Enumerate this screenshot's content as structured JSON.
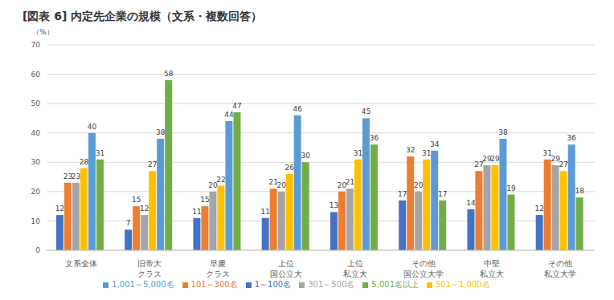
{
  "chart_data": {
    "type": "bar",
    "title": "[図表 6] 内定先企業の規模（文系・複数回答）",
    "y_label": "（%）",
    "categories": [
      "文系全体",
      "旧帝大\nクラス",
      "早慶\nクラス",
      "上位\n国公立大",
      "上位\n私立大",
      "その他\n国公立大学",
      "中堅\n私立大",
      "その他\n私立大学"
    ],
    "series": [
      {
        "name": "1～100名",
        "color": "#4472c4",
        "values": [
          12,
          7,
          11,
          11,
          13,
          17,
          14,
          12
        ]
      },
      {
        "name": "101～300名",
        "color": "#ed7d31",
        "values": [
          23,
          15,
          15,
          21,
          20,
          32,
          27,
          31
        ]
      },
      {
        "name": "301～500名",
        "color": "#a5a5a5",
        "values": [
          23,
          12,
          20,
          20,
          21,
          20,
          29,
          29
        ]
      },
      {
        "name": "501～1,000名",
        "color": "#ffc000",
        "values": [
          28,
          27,
          22,
          26,
          31,
          31,
          29,
          27
        ]
      },
      {
        "name": "1,001～5,000名",
        "color": "#5b9bd5",
        "values": [
          40,
          38,
          44,
          46,
          45,
          34,
          38,
          36
        ]
      },
      {
        "name": "5,001名以上",
        "color": "#70ad47",
        "values": [
          31,
          58,
          47,
          30,
          36,
          17,
          19,
          18
        ]
      }
    ],
    "ylim": [
      0,
      70
    ],
    "yticks": [
      0,
      10,
      20,
      30,
      40,
      50,
      60,
      70
    ],
    "grid": true,
    "data_labels": true,
    "legend": "bottom"
  }
}
